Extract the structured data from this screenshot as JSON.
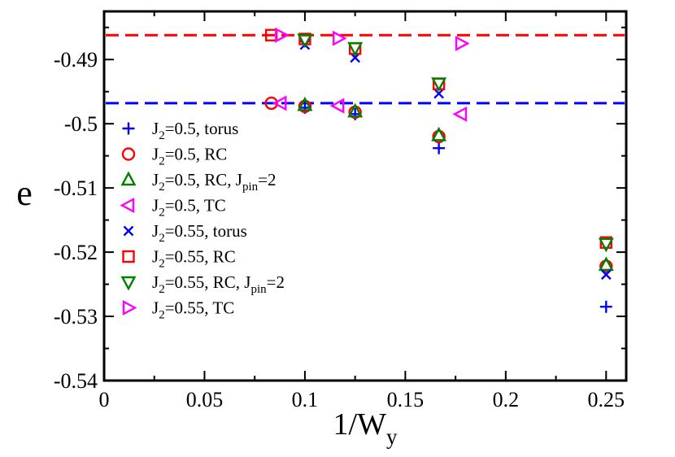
{
  "chart_data": {
    "type": "scatter",
    "xlabel": {
      "main": "1/W",
      "sub": "y"
    },
    "ylabel": "e",
    "xlim": [
      0,
      0.26
    ],
    "ylim": [
      -0.54,
      -0.4825
    ],
    "xticks": [
      0,
      0.05,
      0.1,
      0.15,
      0.2,
      0.25
    ],
    "xtick_labels": [
      "0",
      "0.05",
      "0.1",
      "0.15",
      "0.2",
      "0.25"
    ],
    "yticks": [
      -0.54,
      -0.53,
      -0.52,
      -0.51,
      -0.5,
      -0.49
    ],
    "ytick_labels": [
      "-0.54",
      "-0.53",
      "-0.52",
      "-0.51",
      "-0.5",
      "-0.49"
    ],
    "hlines": [
      {
        "y": -0.4862,
        "color": "#ff0000"
      },
      {
        "y": -0.4968,
        "color": "#0000ff"
      }
    ],
    "legend_position": "left",
    "series": [
      {
        "key": "s1",
        "label_parts": [
          "J",
          "2",
          "=0.5, torus"
        ],
        "marker": "plus",
        "color": "#0000ff",
        "x": [
          0.1,
          0.125,
          0.1667,
          0.25
        ],
        "y": [
          -0.4975,
          -0.4985,
          -0.5038,
          -0.5285
        ]
      },
      {
        "key": "s2",
        "label_parts": [
          "J",
          "2",
          "=0.5, RC"
        ],
        "marker": "circle",
        "color": "#ff0000",
        "x": [
          0.0833,
          0.1,
          0.125,
          0.1667,
          0.25
        ],
        "y": [
          -0.4968,
          -0.4973,
          -0.4982,
          -0.502,
          -0.5222
        ]
      },
      {
        "key": "s3",
        "label_parts": [
          "J",
          "2",
          "=0.5, RC, J",
          "pin",
          "=2"
        ],
        "marker": "triangle-up",
        "color": "#008000",
        "x": [
          0.1,
          0.125,
          0.1667,
          0.25
        ],
        "y": [
          -0.4971,
          -0.4981,
          -0.5018,
          -0.522
        ]
      },
      {
        "key": "s4",
        "label_parts": [
          "J",
          "2",
          "=0.5, TC"
        ],
        "marker": "triangle-left",
        "color": "#ff00ff",
        "x": [
          0.088,
          0.1167,
          0.1778
        ],
        "y": [
          -0.4968,
          -0.4972,
          -0.4985
        ]
      },
      {
        "key": "s5",
        "label_parts": [
          "J",
          "2",
          "=0.55, torus"
        ],
        "marker": "cross",
        "color": "#0000ff",
        "x": [
          0.1,
          0.125,
          0.1667,
          0.25
        ],
        "y": [
          -0.4877,
          -0.4897,
          -0.4953,
          -0.5235
        ]
      },
      {
        "key": "s6",
        "label_parts": [
          "J",
          "2",
          "=0.55, RC"
        ],
        "marker": "square",
        "color": "#ff0000",
        "x": [
          0.0833,
          0.1,
          0.125,
          0.1667,
          0.25
        ],
        "y": [
          -0.4862,
          -0.4868,
          -0.4883,
          -0.4938,
          -0.5185
        ]
      },
      {
        "key": "s7",
        "label_parts": [
          "J",
          "2",
          "=0.55, RC, J",
          "pin",
          "=2"
        ],
        "marker": "triangle-down",
        "color": "#008000",
        "x": [
          0.1,
          0.125,
          0.1667,
          0.25
        ],
        "y": [
          -0.4869,
          -0.4882,
          -0.4937,
          -0.5187
        ]
      },
      {
        "key": "s8",
        "label_parts": [
          "J",
          "2",
          "=0.55, TC"
        ],
        "marker": "triangle-right",
        "color": "#ff00ff",
        "x": [
          0.088,
          0.1167,
          0.1778
        ],
        "y": [
          -0.4862,
          -0.4867,
          -0.4875
        ]
      }
    ]
  }
}
